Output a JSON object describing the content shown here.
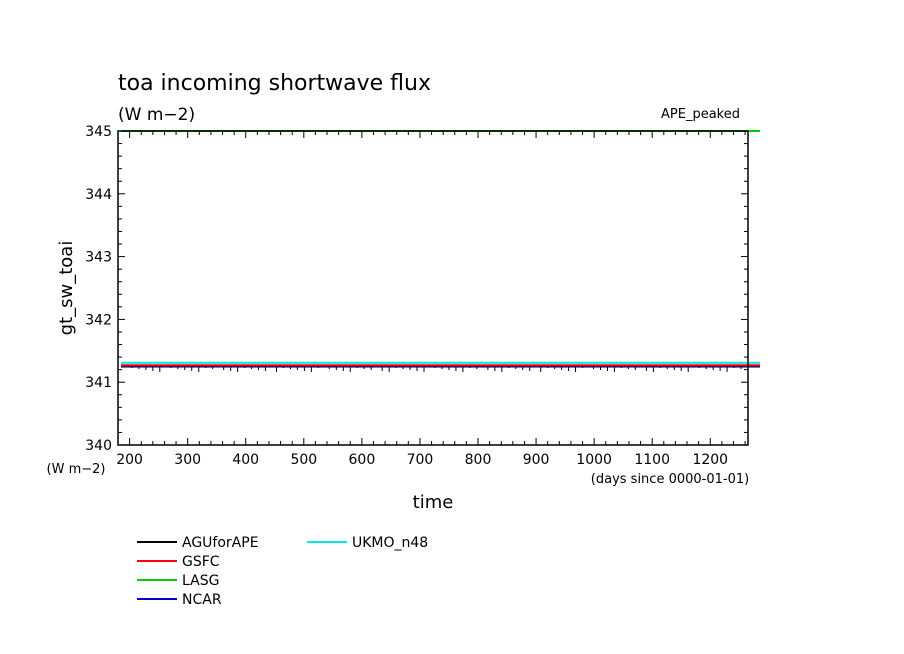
{
  "chart_data": {
    "type": "line",
    "title": "toa incoming shortwave flux",
    "subtitle": "(W m−2)",
    "dataset_label": "APE_peaked",
    "xlabel": "time",
    "xunits": "(days since 0000-01-01)",
    "ylabel": "gt_sw_toai",
    "yunits": "(W m−2)",
    "xlim": [
      180,
      1265
    ],
    "ylim": [
      340,
      345
    ],
    "x_ticks": [
      200,
      300,
      400,
      500,
      600,
      700,
      800,
      900,
      1000,
      1100,
      1200
    ],
    "y_ticks": [
      340,
      341,
      342,
      343,
      344,
      345
    ],
    "grid": false,
    "legend_position": "bottom-left",
    "series": [
      {
        "name": "AGUforAPE",
        "color": "#000000",
        "x": [
          180,
          1265
        ],
        "y": [
          341.25,
          341.25
        ],
        "noise": true
      },
      {
        "name": "GSFC",
        "color": "#ff0000",
        "x": [
          180,
          1265
        ],
        "y": [
          341.27,
          341.27
        ]
      },
      {
        "name": "LASG",
        "color": "#00cc00",
        "x": [
          180,
          1265
        ],
        "y": [
          345.0,
          345.0
        ]
      },
      {
        "name": "NCAR",
        "color": "#0000cc",
        "x": [
          180,
          1265
        ],
        "y": [
          341.26,
          341.26
        ]
      },
      {
        "name": "UKMO_n48",
        "color": "#00e5e5",
        "x": [
          180,
          1265
        ],
        "y": [
          341.31,
          341.31
        ]
      }
    ]
  }
}
